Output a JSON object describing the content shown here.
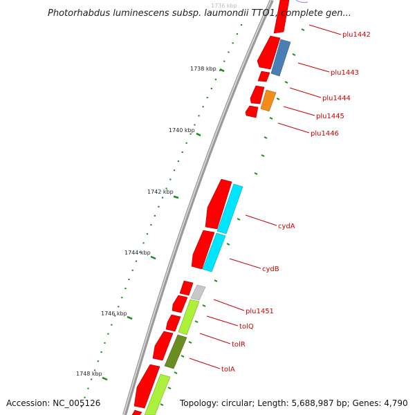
{
  "title": "Photorhabdus luminescens subsp. laumondii TTO1, complete gen...",
  "footer": {
    "accession": "Accession: NC_005126",
    "summary": "Topology: circular; Length: 5,688,987 bp; Genes: 4,790"
  },
  "colors": {
    "cds": "#ff0000",
    "backbone": "#9a9a9a",
    "tick": "#1a8a1a",
    "label": "#cc0000",
    "plu1443": "#4a7fb5",
    "plu1445": "#f28c1a",
    "cyd": "#00e5ff",
    "plu1451": "#c8c8c8",
    "tol_light": "#aaf03c",
    "tolR": "#6b8e23"
  },
  "scale_labels": [
    {
      "text": "1736 kbp",
      "faint": true
    },
    {
      "text": "1738 kbp",
      "faint": false
    },
    {
      "text": "1740 kbp",
      "faint": false
    },
    {
      "text": "1742 kbp",
      "faint": false
    },
    {
      "text": "1744 kbp",
      "faint": false
    },
    {
      "text": "1746 kbp",
      "faint": false
    },
    {
      "text": "1748 kbp",
      "faint": false
    }
  ],
  "gene_labels": [
    "plu1442",
    "plu1443",
    "plu1444",
    "plu1445",
    "plu1446",
    "cydA",
    "cydB",
    "plu1451",
    "tolQ",
    "tolR",
    "tolA"
  ]
}
